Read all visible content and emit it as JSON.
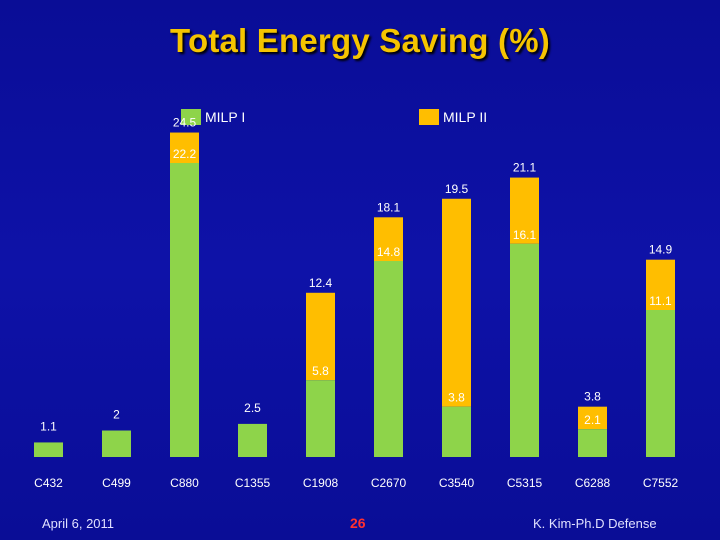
{
  "title": "Total Energy Saving (%)",
  "legend": {
    "milp1": {
      "label": "MILP I",
      "color": "#8ed44a"
    },
    "milp2": {
      "label": "MILP II",
      "color": "#ffbe00"
    }
  },
  "chart_data": {
    "type": "bar",
    "categories": [
      "C432",
      "C499",
      "C880",
      "C1355",
      "C1908",
      "C2670",
      "C3540",
      "C5315",
      "C6288",
      "C7552"
    ],
    "series": [
      {
        "name": "MILP I",
        "values": [
          1.1,
          2,
          22.2,
          2.5,
          5.8,
          14.8,
          3.8,
          16.1,
          2.1,
          11.1
        ],
        "color": "#8ed44a"
      },
      {
        "name": "MILP II",
        "values": [
          1.1,
          2,
          24.5,
          2.5,
          12.4,
          18.1,
          19.5,
          21.1,
          3.8,
          14.9
        ],
        "color": "#ffbe00"
      }
    ],
    "title": "Total Energy Saving (%)",
    "xlabel": "",
    "ylabel": "",
    "ylim": [
      0,
      25
    ],
    "grid": false,
    "legend_position": "top"
  },
  "footer": {
    "date": "April 6, 2011",
    "page": "26",
    "author": "K. Kim-Ph.D Defense"
  }
}
